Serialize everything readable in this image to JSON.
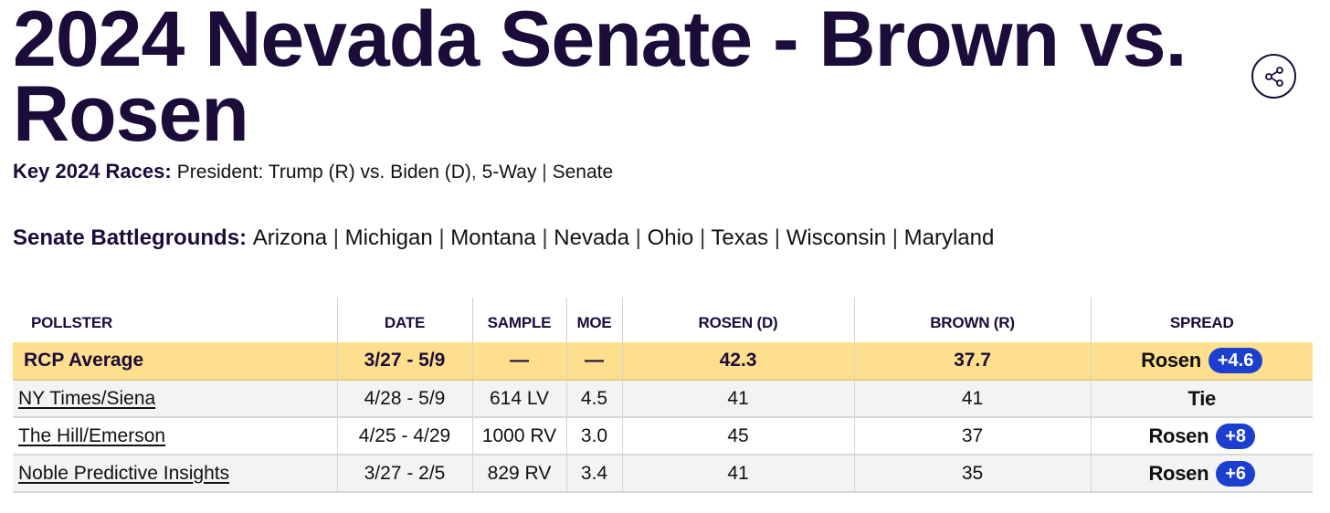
{
  "page": {
    "title": "2024 Nevada Senate - Brown vs. Rosen"
  },
  "key_races": {
    "label": "Key 2024 Races:",
    "items": [
      "President: Trump (R) vs. Biden (D)",
      "5-Way",
      "Senate"
    ]
  },
  "battlegrounds": {
    "label": "Senate Battlegrounds:",
    "items": [
      "Arizona",
      "Michigan",
      "Montana",
      "Nevada",
      "Ohio",
      "Texas",
      "Wisconsin",
      "Maryland"
    ]
  },
  "table": {
    "headers": [
      "POLLSTER",
      "DATE",
      "SAMPLE",
      "MOE",
      "ROSEN (D)",
      "BROWN (R)",
      "SPREAD"
    ],
    "average": {
      "pollster": "RCP Average",
      "date": "3/27 - 5/9",
      "sample": "—",
      "moe": "—",
      "rosen": "42.3",
      "brown": "37.7",
      "spread_candidate": "Rosen",
      "spread_value": "+4.6"
    },
    "rows": [
      {
        "pollster": "NY Times/Siena",
        "date": "4/28 - 5/9",
        "sample": "614 LV",
        "moe": "4.5",
        "rosen": "41",
        "brown": "41",
        "spread_candidate": "Tie",
        "spread_value": ""
      },
      {
        "pollster": "The Hill/Emerson",
        "date": "4/25 - 4/29",
        "sample": "1000 RV",
        "moe": "3.0",
        "rosen": "45",
        "brown": "37",
        "spread_candidate": "Rosen",
        "spread_value": "+8"
      },
      {
        "pollster": "Noble Predictive Insights",
        "date": "3/27 - 2/5",
        "sample": "829 RV",
        "moe": "3.4",
        "rosen": "41",
        "brown": "35",
        "spread_candidate": "Rosen",
        "spread_value": "+6"
      }
    ]
  },
  "colors": {
    "title": "#1c0c3a",
    "average_row": "#fddf8e",
    "badge": "#1d3fd0"
  },
  "icons": {
    "share": "share-icon"
  }
}
